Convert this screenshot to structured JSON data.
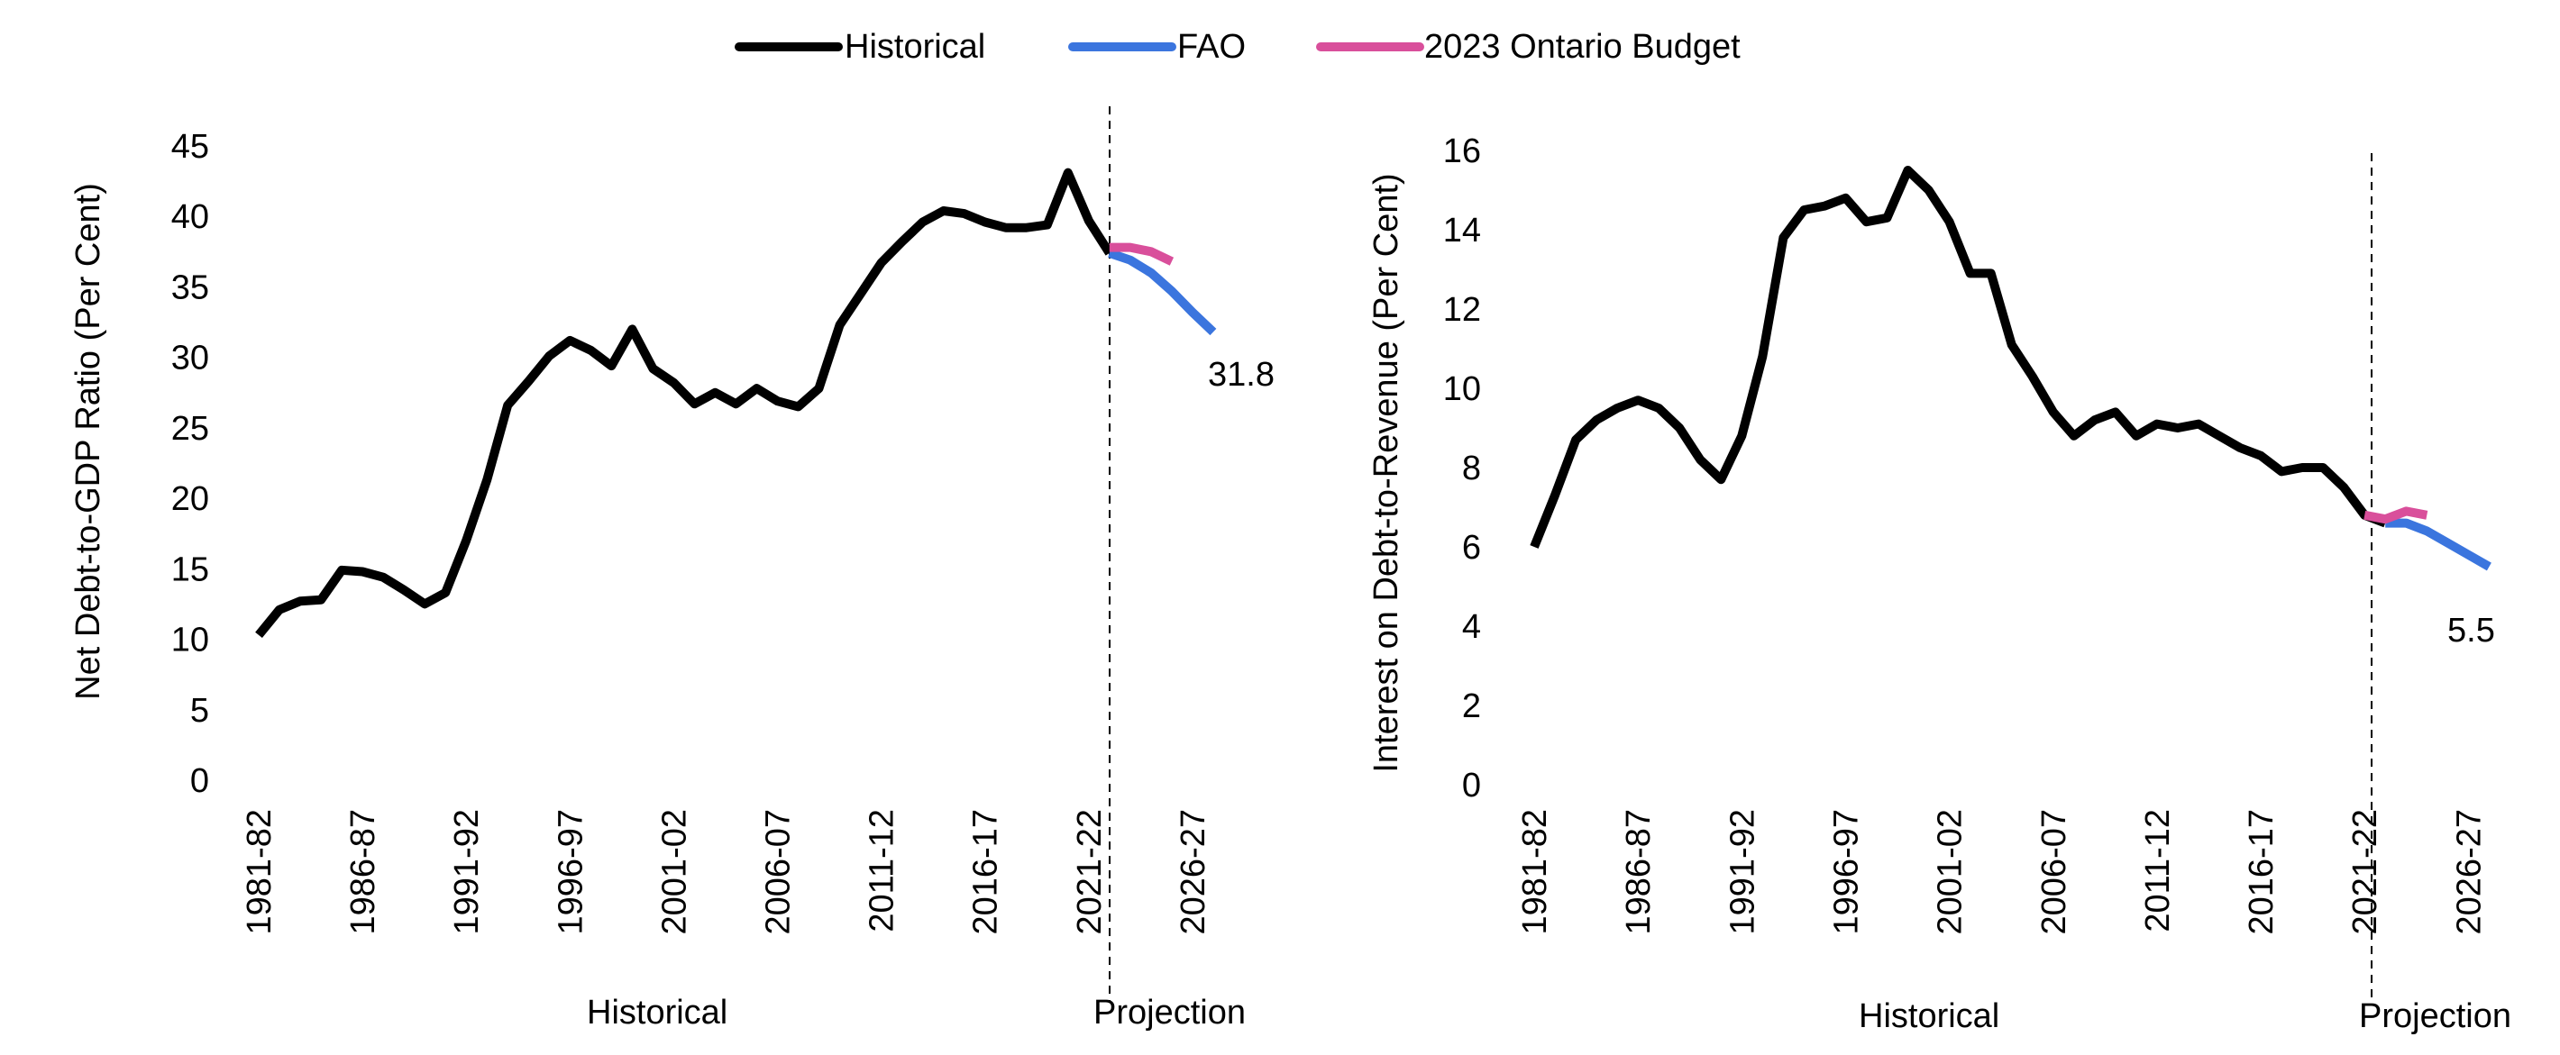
{
  "colors": {
    "historical": "#000000",
    "fao": "#3b75de",
    "budget": "#d94f9b"
  },
  "legend": {
    "historical": "Historical",
    "fao": "FAO",
    "budget": "2023 Ontario Budget"
  },
  "chart_data": [
    {
      "type": "line",
      "ylabel": "Net Debt-to-GDP Ratio (Per Cent)",
      "ylim": [
        0,
        45
      ],
      "yticks": [
        0,
        5,
        10,
        15,
        20,
        25,
        30,
        35,
        40,
        45
      ],
      "xtick_labels": [
        "1981-82",
        "1986-87",
        "1991-92",
        "1996-97",
        "2001-02",
        "2006-07",
        "2011-12",
        "2016-17",
        "2021-22",
        "2026-27"
      ],
      "section_labels": [
        "Historical",
        "Projection"
      ],
      "end_label": "31.8",
      "grid": false,
      "legend_position": "top-center",
      "series": [
        {
          "name": "Historical",
          "x": [
            "1981-82",
            "1982-83",
            "1983-84",
            "1984-85",
            "1985-86",
            "1986-87",
            "1987-88",
            "1988-89",
            "1989-90",
            "1990-91",
            "1991-92",
            "1992-93",
            "1993-94",
            "1994-95",
            "1995-96",
            "1996-97",
            "1997-98",
            "1998-99",
            "1999-00",
            "2000-01",
            "2001-02",
            "2002-03",
            "2003-04",
            "2004-05",
            "2005-06",
            "2006-07",
            "2007-08",
            "2008-09",
            "2009-10",
            "2010-11",
            "2011-12",
            "2012-13",
            "2013-14",
            "2014-15",
            "2015-16",
            "2016-17",
            "2017-18",
            "2018-19",
            "2019-20",
            "2020-21",
            "2021-22",
            "2022-23"
          ],
          "values": [
            10.3,
            12.1,
            12.7,
            12.8,
            14.9,
            14.8,
            14.4,
            13.5,
            12.5,
            13.3,
            17.0,
            21.3,
            26.6,
            28.3,
            30.1,
            31.2,
            30.5,
            29.4,
            32.0,
            29.2,
            28.2,
            26.7,
            27.5,
            26.7,
            27.8,
            26.9,
            26.5,
            27.8,
            32.3,
            34.5,
            36.7,
            38.2,
            39.6,
            40.4,
            40.2,
            39.6,
            39.2,
            39.2,
            39.4,
            43.1,
            39.7,
            37.4
          ]
        },
        {
          "name": "FAO",
          "x": [
            "2022-23",
            "2023-24",
            "2024-25",
            "2025-26",
            "2026-27",
            "2027-28"
          ],
          "values": [
            37.4,
            36.9,
            36.0,
            34.7,
            33.2,
            31.8
          ]
        },
        {
          "name": "2023 Ontario Budget",
          "x": [
            "2022-23",
            "2023-24",
            "2024-25",
            "2025-26"
          ],
          "values": [
            37.8,
            37.8,
            37.5,
            36.8
          ]
        }
      ]
    },
    {
      "type": "line",
      "ylabel": "Interest on Debt-to-Revenue (Per Cent)",
      "ylim": [
        0,
        16
      ],
      "yticks": [
        0,
        2,
        4,
        6,
        8,
        10,
        12,
        14,
        16
      ],
      "xtick_labels": [
        "1981-82",
        "1986-87",
        "1991-92",
        "1996-97",
        "2001-02",
        "2006-07",
        "2011-12",
        "2016-17",
        "2021-22",
        "2026-27"
      ],
      "section_labels": [
        "Historical",
        "Projection"
      ],
      "end_label": "5.5",
      "grid": false,
      "legend_position": "top-center",
      "series": [
        {
          "name": "Historical",
          "x": [
            "1981-82",
            "1982-83",
            "1983-84",
            "1984-85",
            "1985-86",
            "1986-87",
            "1987-88",
            "1988-89",
            "1989-90",
            "1990-91",
            "1991-92",
            "1992-93",
            "1993-94",
            "1994-95",
            "1995-96",
            "1996-97",
            "1997-98",
            "1998-99",
            "1999-00",
            "2000-01",
            "2001-02",
            "2002-03",
            "2003-04",
            "2004-05",
            "2005-06",
            "2006-07",
            "2007-08",
            "2008-09",
            "2009-10",
            "2010-11",
            "2011-12",
            "2012-13",
            "2013-14",
            "2014-15",
            "2015-16",
            "2016-17",
            "2017-18",
            "2018-19",
            "2019-20",
            "2020-21",
            "2021-22",
            "2022-23"
          ],
          "values": [
            6.0,
            7.3,
            8.7,
            9.2,
            9.5,
            9.7,
            9.5,
            9.0,
            8.2,
            7.7,
            8.8,
            10.8,
            13.8,
            14.5,
            14.6,
            14.8,
            14.2,
            14.3,
            15.5,
            15.0,
            14.2,
            12.9,
            12.9,
            11.1,
            10.3,
            9.4,
            8.8,
            9.2,
            9.4,
            8.8,
            9.1,
            9.0,
            9.1,
            8.8,
            8.5,
            8.3,
            7.9,
            8.0,
            8.0,
            7.5,
            6.8,
            6.6
          ]
        },
        {
          "name": "FAO",
          "x": [
            "2022-23",
            "2023-24",
            "2024-25",
            "2025-26",
            "2026-27",
            "2027-28"
          ],
          "values": [
            6.6,
            6.6,
            6.4,
            6.1,
            5.8,
            5.5
          ]
        },
        {
          "name": "2023 Ontario Budget",
          "x": [
            "2021-22",
            "2022-23",
            "2023-24",
            "2024-25"
          ],
          "values": [
            6.8,
            6.7,
            6.9,
            6.8
          ]
        }
      ]
    }
  ]
}
